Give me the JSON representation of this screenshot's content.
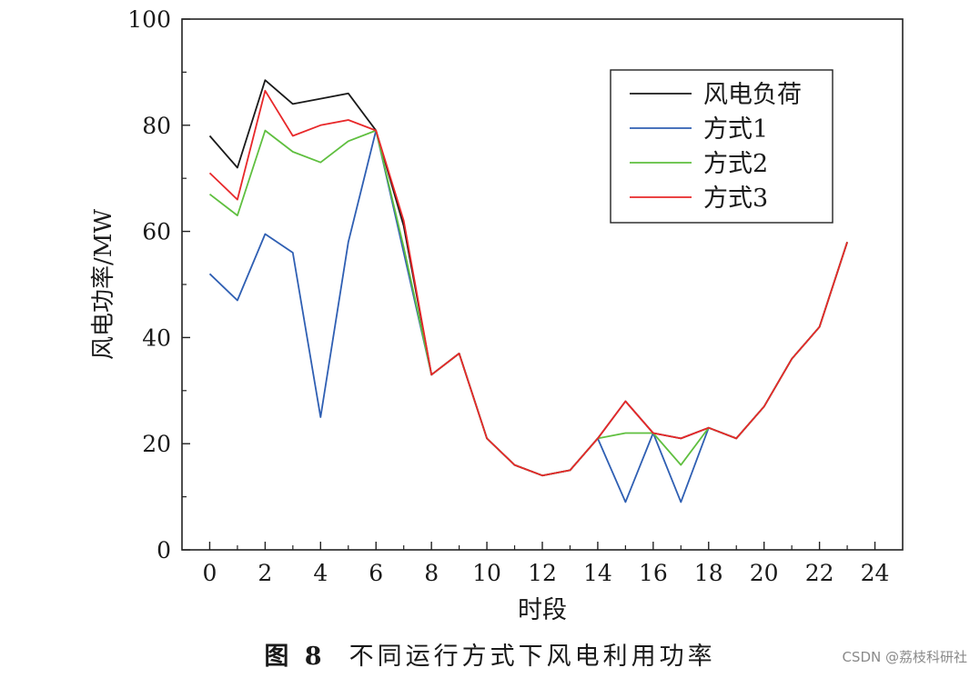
{
  "chart_data": {
    "type": "line",
    "title": "",
    "xlabel": "时段",
    "ylabel": "风电功率/MW",
    "xlim": [
      -1,
      25
    ],
    "ylim": [
      0,
      100
    ],
    "xticks": [
      0,
      2,
      4,
      6,
      8,
      10,
      12,
      14,
      16,
      18,
      20,
      22,
      24
    ],
    "yticks": [
      0,
      20,
      40,
      60,
      80,
      100
    ],
    "grid": false,
    "legend_position": "top-right",
    "x": [
      0,
      1,
      2,
      3,
      4,
      5,
      6,
      7,
      8,
      9,
      10,
      11,
      12,
      13,
      14,
      15,
      16,
      17,
      18,
      19,
      20,
      21,
      22,
      23
    ],
    "series": [
      {
        "name": "风电负荷",
        "color": "#1a1a1a",
        "values": [
          78,
          72,
          88.5,
          84,
          85,
          86,
          79,
          61,
          33,
          37,
          21,
          16,
          14,
          15,
          21,
          28,
          22,
          21,
          23,
          21,
          27,
          36,
          42,
          58
        ]
      },
      {
        "name": "方式1",
        "color": "#2f5fb3",
        "values": [
          52,
          47,
          59.5,
          56,
          25,
          58,
          79,
          56,
          33,
          37,
          21,
          16,
          14,
          15,
          21,
          9,
          22,
          9,
          23,
          21,
          27,
          36,
          42,
          58
        ]
      },
      {
        "name": "方式2",
        "color": "#5fbf3f",
        "values": [
          67,
          63,
          79,
          75,
          73,
          77,
          79,
          57,
          33,
          37,
          21,
          16,
          14,
          15,
          21,
          22,
          22,
          16,
          23,
          21,
          27,
          36,
          42,
          58
        ]
      },
      {
        "name": "方式3",
        "color": "#e8282a",
        "values": [
          71,
          66,
          86.5,
          78,
          80,
          81,
          79,
          62,
          33,
          37,
          21,
          16,
          14,
          15,
          21,
          28,
          22,
          21,
          23,
          21,
          27,
          36,
          42,
          58
        ]
      }
    ]
  },
  "caption": {
    "fig_label": "图 8",
    "text": "不同运行方式下风电利用功率"
  },
  "watermark": "CSDN @荔枝科研社"
}
